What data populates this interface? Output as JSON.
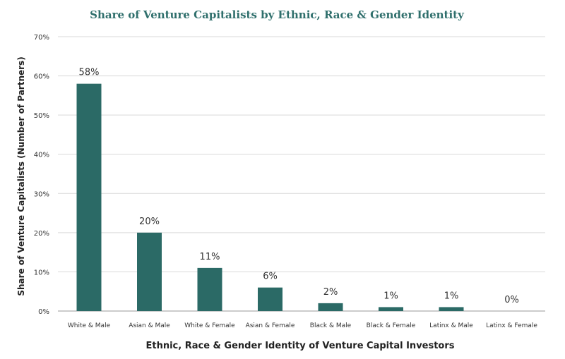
{
  "chart_data": {
    "type": "bar",
    "title": "Share of Venture Capitalists by Ethnic, Race & Gender Identity",
    "xlabel": "Ethnic, Race & Gender Identity of Venture Capital Investors",
    "ylabel": "Share of Venture Capitalists (Number of Partners)",
    "categories": [
      "White & Male",
      "Asian & Male",
      "White & Female",
      "Asian & Female",
      "Black & Male",
      "Black & Female",
      "Latinx & Male",
      "Latinx & Female"
    ],
    "values": [
      58,
      20,
      11,
      6,
      2,
      1,
      1,
      0
    ],
    "value_labels": [
      "58%",
      "20%",
      "11%",
      "6%",
      "2%",
      "1%",
      "1%",
      "0%"
    ],
    "ylim": [
      0,
      70
    ],
    "yticks": [
      0,
      10,
      20,
      30,
      40,
      50,
      60,
      70
    ],
    "ytick_labels": [
      "0%",
      "10%",
      "20%",
      "30%",
      "40%",
      "50%",
      "60%",
      "70%"
    ],
    "grid": true,
    "bar_color": "#2b6a66"
  }
}
